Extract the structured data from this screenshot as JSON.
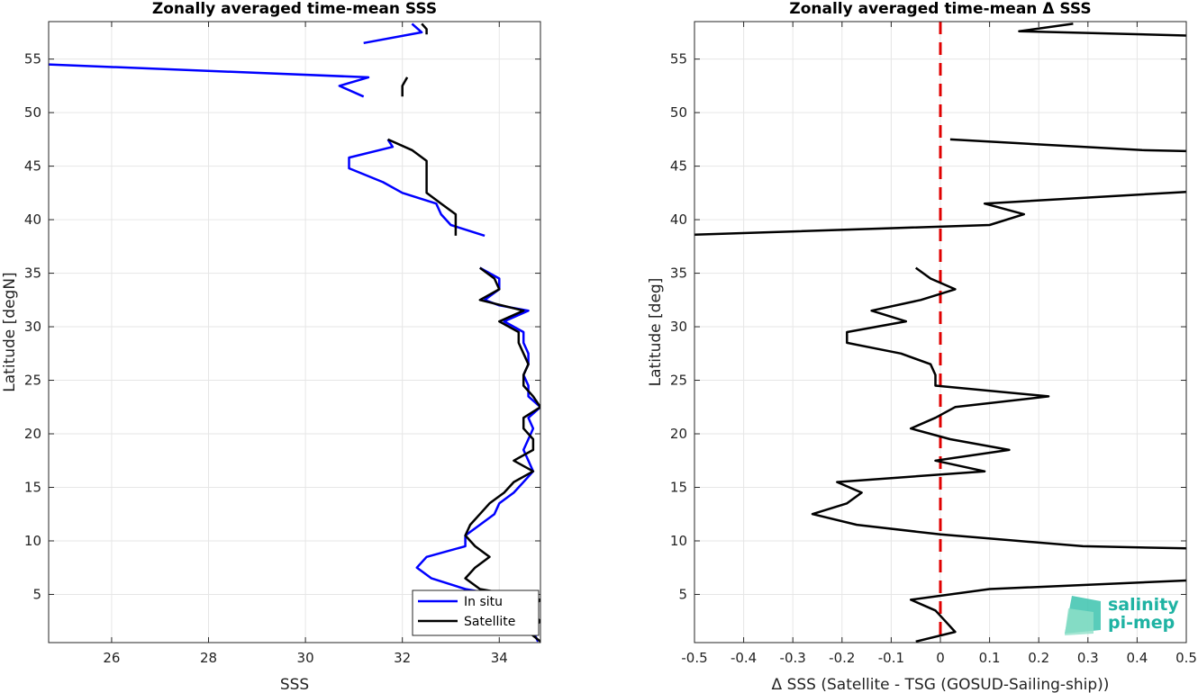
{
  "chart_data": [
    {
      "type": "line",
      "title": "Zonally averaged time-mean SSS",
      "xlabel": "SSS",
      "ylabel": "Latitude [degN]",
      "xlim": [
        24.7,
        34.85
      ],
      "ylim": [
        0.5,
        58.5
      ],
      "xticks": [
        26,
        28,
        30,
        32,
        34
      ],
      "yticks": [
        5,
        10,
        15,
        20,
        25,
        30,
        35,
        40,
        45,
        50,
        55
      ],
      "grid": true,
      "legend_position": "bottom-right",
      "series": [
        {
          "name": "In situ",
          "color": "#0000ff",
          "segments": [
            [
              [
                31.2,
                56.5
              ],
              [
                32.4,
                57.5
              ],
              [
                32.2,
                58.3
              ]
            ],
            [
              [
                24.7,
                54.5
              ],
              [
                31.3,
                53.3
              ],
              [
                30.7,
                52.5
              ],
              [
                31.2,
                51.5
              ]
            ],
            [
              [
                31.7,
                47.5
              ],
              [
                31.8,
                46.8
              ],
              [
                30.9,
                45.8
              ],
              [
                30.9,
                44.8
              ],
              [
                31.6,
                43.5
              ],
              [
                32.0,
                42.5
              ],
              [
                32.7,
                41.5
              ],
              [
                32.8,
                40.5
              ],
              [
                33.0,
                39.5
              ],
              [
                33.7,
                38.5
              ]
            ],
            [
              [
                33.6,
                35.5
              ],
              [
                34.0,
                34.5
              ],
              [
                34.0,
                33.5
              ],
              [
                33.7,
                32.5
              ],
              [
                34.0,
                32.0
              ],
              [
                34.6,
                31.5
              ],
              [
                34.1,
                30.5
              ],
              [
                34.5,
                29.5
              ],
              [
                34.5,
                28.5
              ],
              [
                34.6,
                27.5
              ],
              [
                34.6,
                26.5
              ],
              [
                34.5,
                25.5
              ],
              [
                34.6,
                24.5
              ],
              [
                34.6,
                23.5
              ],
              [
                34.85,
                22.5
              ],
              [
                34.6,
                21.5
              ],
              [
                34.7,
                20.5
              ],
              [
                34.6,
                19.5
              ],
              [
                34.5,
                18.5
              ],
              [
                34.6,
                17.5
              ],
              [
                34.7,
                16.5
              ],
              [
                34.5,
                15.5
              ],
              [
                34.3,
                14.5
              ],
              [
                34.0,
                13.5
              ],
              [
                33.9,
                12.5
              ],
              [
                33.6,
                11.5
              ],
              [
                33.3,
                10.5
              ],
              [
                33.3,
                9.5
              ],
              [
                32.5,
                8.5
              ],
              [
                32.3,
                7.5
              ],
              [
                32.6,
                6.5
              ],
              [
                33.3,
                5.5
              ],
              [
                34.5,
                4.5
              ],
              [
                34.8,
                3.5
              ],
              [
                34.7,
                2.5
              ],
              [
                34.7,
                1.5
              ],
              [
                34.8,
                0.6
              ]
            ]
          ]
        },
        {
          "name": "Satellite",
          "color": "#000000",
          "segments": [
            [
              [
                32.4,
                58.3
              ],
              [
                32.5,
                57.8
              ],
              [
                32.5,
                57.3
              ]
            ],
            [
              [
                32.1,
                53.3
              ],
              [
                32.0,
                52.5
              ],
              [
                32.0,
                51.5
              ]
            ],
            [
              [
                31.7,
                47.5
              ],
              [
                32.2,
                46.5
              ],
              [
                32.5,
                45.5
              ],
              [
                32.5,
                44.5
              ],
              [
                32.5,
                43.5
              ],
              [
                32.5,
                42.5
              ],
              [
                32.8,
                41.5
              ],
              [
                33.1,
                40.5
              ],
              [
                33.1,
                39.5
              ],
              [
                33.1,
                38.5
              ]
            ],
            [
              [
                33.6,
                35.5
              ],
              [
                33.9,
                34.5
              ],
              [
                34.0,
                33.5
              ],
              [
                33.6,
                32.5
              ],
              [
                34.5,
                31.5
              ],
              [
                34.0,
                30.5
              ],
              [
                34.4,
                29.5
              ],
              [
                34.4,
                28.5
              ],
              [
                34.5,
                27.5
              ],
              [
                34.6,
                26.5
              ],
              [
                34.5,
                25.5
              ],
              [
                34.5,
                24.5
              ],
              [
                34.7,
                23.5
              ],
              [
                34.85,
                22.5
              ],
              [
                34.5,
                21.5
              ],
              [
                34.5,
                20.5
              ],
              [
                34.7,
                19.5
              ],
              [
                34.7,
                18.5
              ],
              [
                34.3,
                17.5
              ],
              [
                34.7,
                16.5
              ],
              [
                34.3,
                15.5
              ],
              [
                34.1,
                14.5
              ],
              [
                33.8,
                13.5
              ],
              [
                33.6,
                12.5
              ],
              [
                33.4,
                11.5
              ],
              [
                33.3,
                10.5
              ],
              [
                33.5,
                9.5
              ],
              [
                33.8,
                8.5
              ],
              [
                33.5,
                7.5
              ],
              [
                33.3,
                6.5
              ],
              [
                33.6,
                5.5
              ],
              [
                34.85,
                4.5
              ],
              [
                34.6,
                3.5
              ],
              [
                34.85,
                2.5
              ],
              [
                34.6,
                1.5
              ],
              [
                34.85,
                0.6
              ]
            ]
          ]
        }
      ]
    },
    {
      "type": "line",
      "title": "Zonally averaged time-mean Δ SSS",
      "xlabel": "Δ SSS (Satellite - TSG (GOSUD-Sailing-ship))",
      "ylabel": "Latitude [deg]",
      "xlim": [
        -0.5,
        0.5
      ],
      "ylim": [
        0.5,
        58.5
      ],
      "xticks": [
        -0.5,
        -0.4,
        -0.3,
        -0.2,
        -0.1,
        0,
        0.1,
        0.2,
        0.3,
        0.4,
        0.5
      ],
      "yticks": [
        5,
        10,
        15,
        20,
        25,
        30,
        35,
        40,
        45,
        50,
        55
      ],
      "grid": true,
      "reference_line": {
        "x": 0,
        "color": "#e00000",
        "style": "dashed"
      },
      "series": [
        {
          "color": "#000000",
          "segments": [
            [
              [
                0.27,
                58.3
              ],
              [
                0.16,
                57.6
              ],
              [
                0.5,
                57.2
              ]
            ],
            [
              [
                0.02,
                47.5
              ],
              [
                0.41,
                46.5
              ],
              [
                0.5,
                46.4
              ]
            ],
            [
              [
                0.5,
                42.6
              ],
              [
                0.09,
                41.5
              ],
              [
                0.17,
                40.5
              ],
              [
                0.1,
                39.5
              ],
              [
                -0.5,
                38.6
              ]
            ],
            [
              [
                -0.05,
                35.5
              ],
              [
                -0.02,
                34.5
              ],
              [
                0.03,
                33.5
              ],
              [
                -0.04,
                32.5
              ],
              [
                -0.14,
                31.5
              ],
              [
                -0.07,
                30.5
              ],
              [
                -0.19,
                29.5
              ],
              [
                -0.19,
                28.5
              ],
              [
                -0.08,
                27.5
              ],
              [
                -0.02,
                26.5
              ],
              [
                -0.01,
                25.5
              ],
              [
                -0.01,
                24.5
              ],
              [
                0.22,
                23.5
              ],
              [
                0.03,
                22.5
              ],
              [
                -0.01,
                21.5
              ],
              [
                -0.06,
                20.5
              ],
              [
                0.02,
                19.5
              ],
              [
                0.14,
                18.5
              ],
              [
                -0.01,
                17.5
              ],
              [
                0.09,
                16.5
              ],
              [
                -0.21,
                15.5
              ],
              [
                -0.16,
                14.5
              ],
              [
                -0.19,
                13.5
              ],
              [
                -0.26,
                12.5
              ],
              [
                -0.17,
                11.5
              ],
              [
                0.0,
                10.6
              ],
              [
                0.29,
                9.5
              ],
              [
                0.5,
                9.3
              ]
            ],
            [
              [
                0.5,
                6.3
              ],
              [
                0.1,
                5.5
              ],
              [
                -0.06,
                4.5
              ],
              [
                -0.01,
                3.5
              ],
              [
                0.01,
                2.5
              ],
              [
                0.03,
                1.5
              ],
              [
                -0.05,
                0.6
              ]
            ]
          ]
        }
      ]
    }
  ],
  "logo": {
    "line1": "salinity",
    "line2": "pi-mep"
  }
}
